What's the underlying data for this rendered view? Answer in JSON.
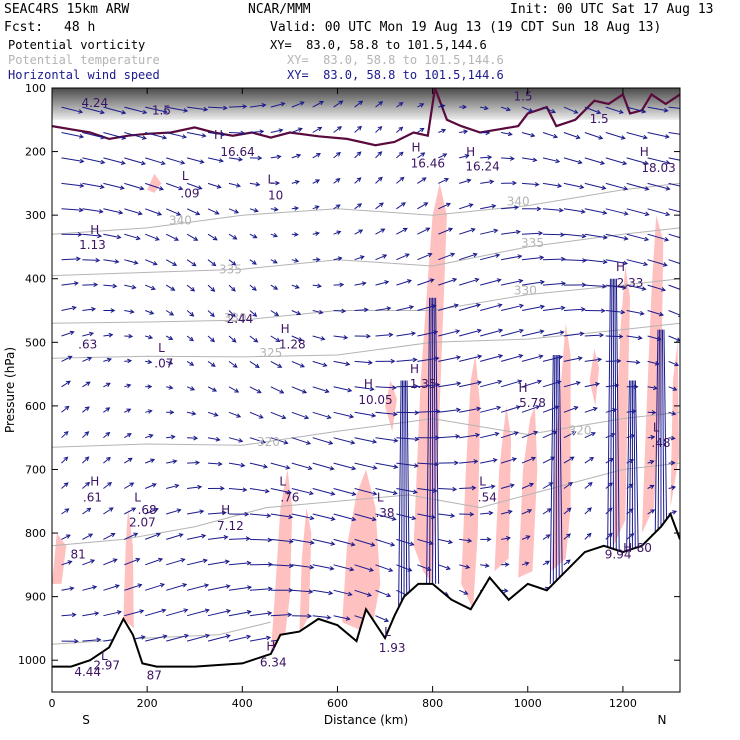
{
  "header": {
    "model": "SEAC4RS 15km ARW",
    "org": "NCAR/MMM",
    "init": "Init: 00 UTC Sat 17 Aug 13",
    "fcst_label": "Fcst:",
    "fcst_value": "48 h",
    "valid": "Valid: 00 UTC Mon 19 Aug 13 (19 CDT Sun 18 Aug 13)",
    "fields": [
      {
        "name": "Potential vorticity",
        "xy": "XY=  83.0, 58.8 to 101.5,144.6",
        "color": "#000000"
      },
      {
        "name": "Potential temperature",
        "xy": "XY=  83.0, 58.8 to 101.5,144.6",
        "color": "#b4b4b4"
      },
      {
        "name": "Horizontal wind speed",
        "xy": "XY=  83.0, 58.8 to 101.5,144.6",
        "color": "#1a1a8c"
      }
    ]
  },
  "chart_data": {
    "type": "cross-section",
    "xlabel": "Distance (km)",
    "ylabel": "Pressure (hPa)",
    "xlim": [
      0,
      1320
    ],
    "ylim": [
      1050,
      100
    ],
    "xticks": [
      "0",
      "200",
      "400",
      "600",
      "800",
      "1000",
      "1200"
    ],
    "yticks": [
      "100",
      "200",
      "300",
      "400",
      "500",
      "600",
      "700",
      "800",
      "900",
      "1000"
    ],
    "endpoints": {
      "left": "S",
      "right": "N"
    },
    "colors": {
      "pv_fill": "#ffc0c0",
      "theta": "#b4b4b4",
      "wind": "#1a1a8c",
      "ground": "#000000",
      "tropopause": "#5a0a3c",
      "hl_text": "#3c1464"
    },
    "terrain": [
      [
        0,
        1010
      ],
      [
        40,
        1010
      ],
      [
        80,
        1000
      ],
      [
        120,
        980
      ],
      [
        150,
        935
      ],
      [
        170,
        960
      ],
      [
        190,
        1005
      ],
      [
        220,
        1010
      ],
      [
        300,
        1010
      ],
      [
        400,
        1005
      ],
      [
        460,
        990
      ],
      [
        480,
        960
      ],
      [
        520,
        955
      ],
      [
        560,
        935
      ],
      [
        600,
        945
      ],
      [
        640,
        970
      ],
      [
        660,
        920
      ],
      [
        700,
        965
      ],
      [
        720,
        930
      ],
      [
        740,
        900
      ],
      [
        770,
        880
      ],
      [
        800,
        880
      ],
      [
        840,
        905
      ],
      [
        880,
        920
      ],
      [
        920,
        870
      ],
      [
        960,
        905
      ],
      [
        1000,
        880
      ],
      [
        1040,
        890
      ],
      [
        1080,
        860
      ],
      [
        1120,
        830
      ],
      [
        1160,
        820
      ],
      [
        1200,
        830
      ],
      [
        1240,
        820
      ],
      [
        1280,
        790
      ],
      [
        1300,
        770
      ],
      [
        1320,
        810
      ]
    ],
    "tropopause": [
      [
        0,
        160
      ],
      [
        40,
        165
      ],
      [
        80,
        170
      ],
      [
        120,
        180
      ],
      [
        160,
        175
      ],
      [
        200,
        172
      ],
      [
        250,
        170
      ],
      [
        300,
        162
      ],
      [
        340,
        170
      ],
      [
        380,
        175
      ],
      [
        420,
        170
      ],
      [
        460,
        178
      ],
      [
        500,
        170
      ],
      [
        560,
        176
      ],
      [
        620,
        180
      ],
      [
        680,
        190
      ],
      [
        720,
        185
      ],
      [
        760,
        170
      ],
      [
        790,
        175
      ],
      [
        805,
        100
      ],
      [
        830,
        150
      ],
      [
        860,
        160
      ],
      [
        900,
        170
      ],
      [
        940,
        165
      ],
      [
        980,
        160
      ],
      [
        1000,
        140
      ],
      [
        1040,
        130
      ],
      [
        1060,
        160
      ],
      [
        1100,
        150
      ],
      [
        1140,
        120
      ],
      [
        1170,
        125
      ],
      [
        1200,
        110
      ],
      [
        1215,
        140
      ],
      [
        1240,
        135
      ],
      [
        1260,
        110
      ],
      [
        1290,
        125
      ],
      [
        1320,
        110
      ]
    ],
    "theta_labels": [
      {
        "text": "340",
        "x": 270,
        "p": 315
      },
      {
        "text": "335",
        "x": 375,
        "p": 392
      },
      {
        "text": "330",
        "x": 385,
        "p": 468
      },
      {
        "text": "325",
        "x": 460,
        "p": 523
      },
      {
        "text": "320",
        "x": 455,
        "p": 663
      },
      {
        "text": "340",
        "x": 980,
        "p": 285
      },
      {
        "text": "335",
        "x": 1010,
        "p": 350
      },
      {
        "text": "330",
        "x": 995,
        "p": 425
      },
      {
        "text": "320",
        "x": 1110,
        "p": 645
      }
    ],
    "pv_labels": [
      {
        "text": "1.5",
        "x": 230,
        "p": 142
      },
      {
        "text": "1.5",
        "x": 990,
        "p": 120
      },
      {
        "text": "1.5",
        "x": 1150,
        "p": 155
      },
      {
        "text": "L",
        "x": 280,
        "p": 245
      },
      {
        "text": ".09",
        "x": 290,
        "p": 272
      },
      {
        "text": "L",
        "x": 460,
        "p": 250
      },
      {
        "text": "10",
        "x": 470,
        "p": 275
      },
      {
        "text": "H",
        "x": 90,
        "p": 330
      },
      {
        "text": "1.13",
        "x": 85,
        "p": 353
      },
      {
        "text": "2.44",
        "x": 395,
        "p": 470
      },
      {
        "text": "H",
        "x": 490,
        "p": 485
      },
      {
        "text": "1.28",
        "x": 505,
        "p": 510
      },
      {
        "text": ".63",
        "x": 75,
        "p": 510
      },
      {
        "text": "L",
        "x": 230,
        "p": 515
      },
      {
        "text": ".07",
        "x": 235,
        "p": 540
      },
      {
        "text": "H",
        "x": 350,
        "p": 180
      },
      {
        "text": "16.64",
        "x": 390,
        "p": 207
      },
      {
        "text": "H",
        "x": 765,
        "p": 200
      },
      {
        "text": "16.46",
        "x": 790,
        "p": 225
      },
      {
        "text": "H",
        "x": 880,
        "p": 207
      },
      {
        "text": "16.24",
        "x": 905,
        "p": 230
      },
      {
        "text": "H",
        "x": 1245,
        "p": 207
      },
      {
        "text": "18.03",
        "x": 1275,
        "p": 232
      },
      {
        "text": "H",
        "x": 1195,
        "p": 388
      },
      {
        "text": "2.33",
        "x": 1215,
        "p": 413
      },
      {
        "text": "H",
        "x": 762,
        "p": 548
      },
      {
        "text": "1.35",
        "x": 780,
        "p": 572
      },
      {
        "text": "H",
        "x": 665,
        "p": 572
      },
      {
        "text": "10.05",
        "x": 680,
        "p": 597
      },
      {
        "text": "H",
        "x": 990,
        "p": 578
      },
      {
        "text": "5.78",
        "x": 1010,
        "p": 602
      },
      {
        "text": "L",
        "x": 1270,
        "p": 640
      },
      {
        "text": ".48",
        "x": 1280,
        "p": 665
      },
      {
        "text": "L",
        "x": 485,
        "p": 725
      },
      {
        "text": ".76",
        "x": 500,
        "p": 750
      },
      {
        "text": "L",
        "x": 690,
        "p": 750
      },
      {
        "text": ".38",
        "x": 700,
        "p": 775
      },
      {
        "text": "L",
        "x": 905,
        "p": 725
      },
      {
        "text": ".54",
        "x": 915,
        "p": 750
      },
      {
        "text": "H",
        "x": 90,
        "p": 725
      },
      {
        "text": ".61",
        "x": 85,
        "p": 750
      },
      {
        "text": "L",
        "x": 180,
        "p": 750
      },
      {
        "text": ".68",
        "x": 200,
        "p": 770
      },
      {
        "text": "2.07",
        "x": 190,
        "p": 790
      },
      {
        "text": "H",
        "x": 365,
        "p": 770
      },
      {
        "text": "7.12",
        "x": 375,
        "p": 795
      },
      {
        "text": "81",
        "x": 55,
        "p": 840
      },
      {
        "text": "9.94",
        "x": 1190,
        "p": 840
      },
      {
        "text": "H",
        "x": 1210,
        "p": 830
      },
      {
        "text": "80",
        "x": 1245,
        "p": 830
      },
      {
        "text": "L",
        "x": 705,
        "p": 962
      },
      {
        "text": "1.93",
        "x": 715,
        "p": 987
      },
      {
        "text": "H",
        "x": 460,
        "p": 985
      },
      {
        "text": "6.34",
        "x": 465,
        "p": 1010
      },
      {
        "text": "L",
        "x": 110,
        "p": 1000
      },
      {
        "text": "2.97",
        "x": 115,
        "p": 1015
      },
      {
        "text": "4.44",
        "x": 75,
        "p": 1025
      },
      {
        "text": "4.24",
        "x": 90,
        "p": 130
      },
      {
        "text": "87",
        "x": 215,
        "p": 1030
      }
    ]
  }
}
